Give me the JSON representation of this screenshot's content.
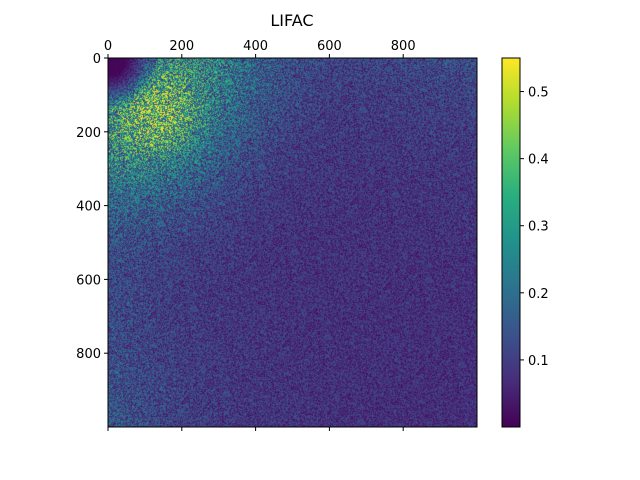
{
  "chart_data": {
    "type": "heatmap",
    "title": "LIFAC",
    "xlabel": "",
    "ylabel": "",
    "x_range": [
      0,
      1000
    ],
    "y_range": [
      0,
      1000
    ],
    "y_inverted": true,
    "x_axis_position": "top",
    "x_ticks": [
      0,
      200,
      400,
      600,
      800
    ],
    "y_ticks": [
      0,
      200,
      400,
      600,
      800
    ],
    "colormap": "viridis",
    "colorbar": {
      "range": [
        0.0,
        0.55
      ],
      "ticks": [
        0.1,
        0.2,
        0.3,
        0.4,
        0.5
      ],
      "placement": "right"
    },
    "description_of_field": {
      "low_value_corner": [
        0,
        0
      ],
      "peak_region_center": [
        130,
        150
      ],
      "peak_value": 0.5,
      "background_value": 0.1
    },
    "grid": false
  }
}
